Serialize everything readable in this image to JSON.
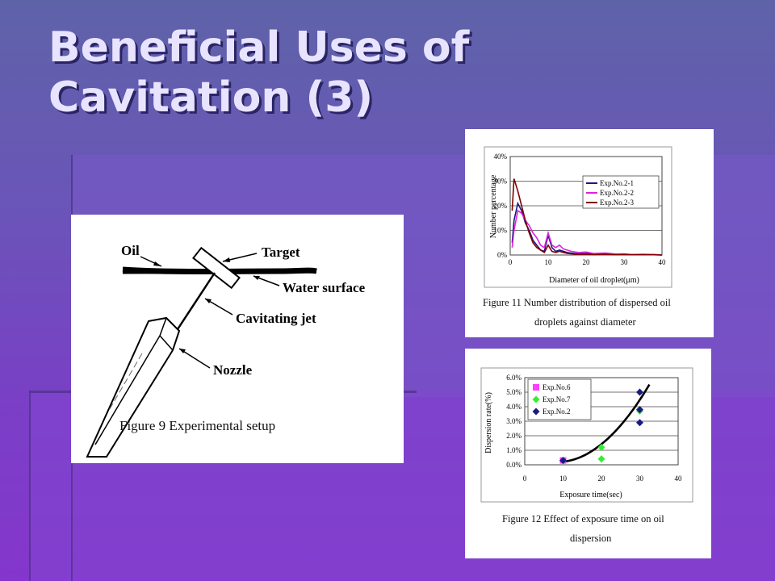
{
  "slide": {
    "title_lines": [
      "Beneficial Uses of",
      "Cavitation (3)"
    ]
  },
  "figure9": {
    "labels": {
      "oil": "Oil",
      "target": "Target",
      "water_surface": "Water surface",
      "cavitating_jet": "Cavitating jet",
      "nozzle": "Nozzle"
    },
    "caption": "Figure 9    Experimental setup"
  },
  "figure11": {
    "caption_line1": "Figure 11     Number distribution of dispersed oil",
    "caption_line2": "droplets against diameter",
    "chart_data": {
      "type": "line",
      "xlabel": "Diameter of oil droplet(μm)",
      "ylabel": "Number percentage",
      "xlim": [
        0,
        40
      ],
      "ylim": [
        0,
        40
      ],
      "x_ticks": [
        "0",
        "10",
        "20",
        "30",
        "40"
      ],
      "y_ticks": [
        "0%",
        "10%",
        "20%",
        "30%",
        "40%"
      ],
      "grid": true,
      "legend_position": "top-right",
      "x": [
        0.5,
        1,
        2,
        3,
        4,
        5,
        6,
        7,
        8,
        9,
        10,
        11,
        12,
        13,
        14,
        15,
        16,
        18,
        20,
        22,
        25,
        28,
        30,
        32,
        35,
        38,
        40
      ],
      "series": [
        {
          "name": "Exp.No.2-1",
          "color": "#1a1a80",
          "values": [
            5,
            14,
            21,
            18,
            13,
            10,
            6,
            4,
            2,
            1.5,
            8,
            3,
            1.5,
            2,
            1.5,
            1,
            0.8,
            0.5,
            0.6,
            0.3,
            0.4,
            0.2,
            0.3,
            0.1,
            0.2,
            0.1,
            0
          ]
        },
        {
          "name": "Exp.No.2-2",
          "color": "#e020e0",
          "values": [
            3,
            10,
            18,
            17,
            14,
            12,
            9,
            7,
            4,
            3,
            9,
            4,
            3,
            4,
            2.5,
            2,
            1.5,
            1,
            1.2,
            0.6,
            0.8,
            0.4,
            0.5,
            0.2,
            0.3,
            0.2,
            0
          ]
        },
        {
          "name": "Exp.No.2-3",
          "color": "#800000",
          "values": [
            18,
            31,
            26,
            20,
            14,
            9,
            5,
            3,
            2,
            1,
            4,
            1.5,
            1,
            1.5,
            1,
            0.7,
            0.5,
            0.3,
            0.4,
            0.2,
            0.3,
            0.1,
            0.2,
            0.1,
            0.1,
            0.1,
            0
          ]
        }
      ]
    }
  },
  "figure12": {
    "caption_line1": "Figure 12     Effect of exposure time on oil",
    "caption_line2": "dispersion",
    "chart_data": {
      "type": "scatter",
      "xlabel": "Exposure time(sec)",
      "ylabel": "Dispersion rate(%)",
      "xlim": [
        0,
        40
      ],
      "ylim": [
        0,
        6
      ],
      "x_ticks": [
        "0",
        "10",
        "20",
        "30",
        "40"
      ],
      "y_ticks": [
        "0.0%",
        "1.0%",
        "2.0%",
        "3.0%",
        "4.0%",
        "5.0%",
        "6.0%"
      ],
      "grid": true,
      "legend_position": "top-left",
      "series": [
        {
          "name": "Exp.No.6",
          "color": "#ff40ff",
          "marker": "square",
          "points": [
            [
              10,
              0.3
            ]
          ]
        },
        {
          "name": "Exp.No.7",
          "color": "#33ee33",
          "marker": "diamond",
          "points": [
            [
              10,
              0.3
            ],
            [
              20,
              1.2
            ],
            [
              20,
              0.4
            ],
            [
              30,
              3.7
            ]
          ]
        },
        {
          "name": "Exp.No.2",
          "color": "#1a1a80",
          "marker": "diamond",
          "points": [
            [
              10,
              0.3
            ],
            [
              30,
              5.0
            ],
            [
              30,
              2.9
            ],
            [
              30,
              3.8
            ]
          ]
        }
      ],
      "trendline": {
        "color": "#000000",
        "from_x": 9.5,
        "to_x": 32.5,
        "coeffs": [
          0.84,
          -0.155,
          0.0092
        ]
      }
    }
  }
}
